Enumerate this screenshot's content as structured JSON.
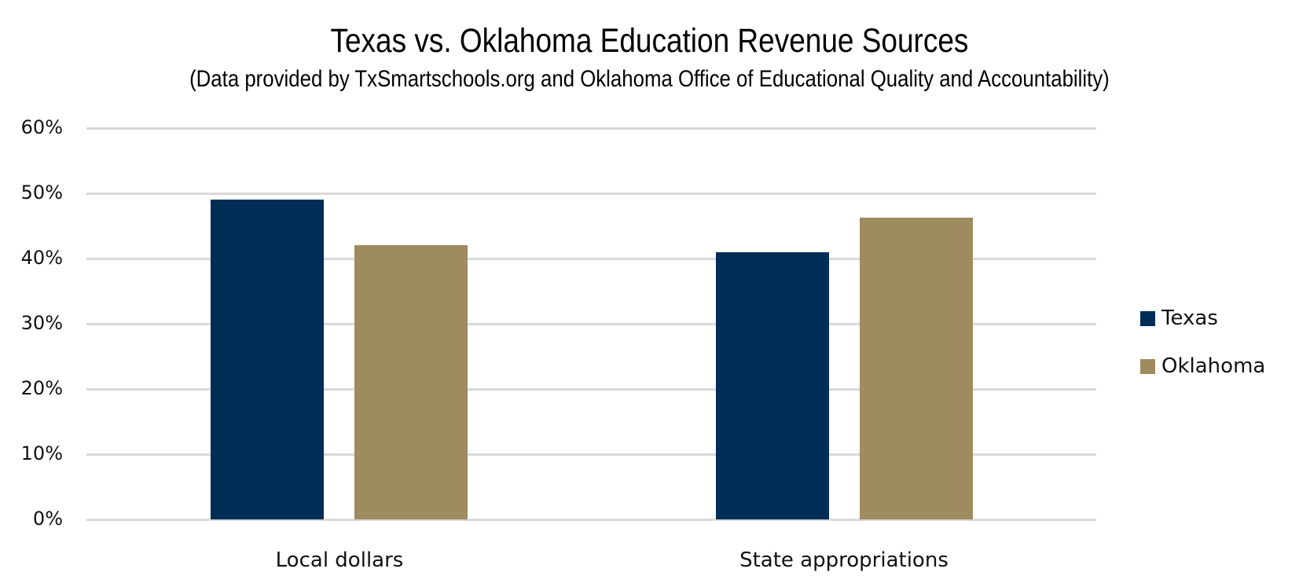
{
  "chart_data": {
    "type": "bar",
    "title": "Texas vs. Oklahoma Education Revenue Sources",
    "subtitle": "(Data provided by TxSmartschools.org and Oklahoma Office of Educational Quality and Accountability)",
    "categories": [
      "Local dollars",
      "State appropriations"
    ],
    "series": [
      {
        "name": "Texas",
        "color": "#002D56",
        "values": [
          49,
          41
        ]
      },
      {
        "name": "Oklahoma",
        "color": "#9E8B5F",
        "values": [
          42,
          46.3
        ]
      }
    ],
    "xlabel": "",
    "ylabel": "",
    "ylim": [
      0,
      60
    ],
    "yticks": [
      "0%",
      "10%",
      "20%",
      "30%",
      "40%",
      "50%",
      "60%"
    ],
    "grid": true,
    "legend_position": "right"
  }
}
